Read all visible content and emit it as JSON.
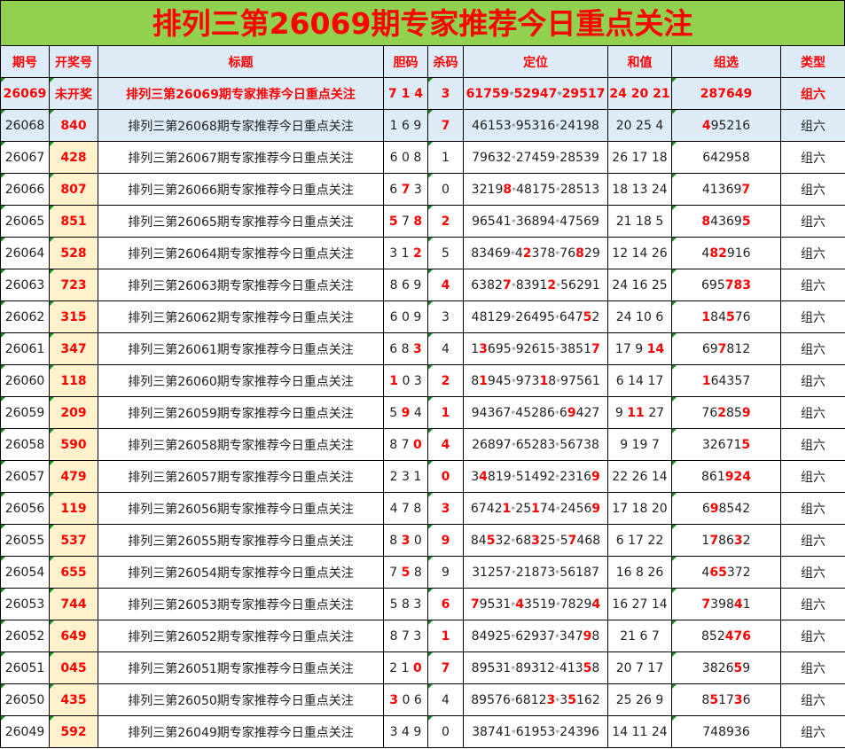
{
  "title": "排列三第26069期专家推荐今日重点关注",
  "headers": [
    "期号",
    "开奖号",
    "标题",
    "胆码",
    "杀码",
    "定位",
    "和值",
    "组选",
    "类型"
  ],
  "colors": {
    "title_bg": "#92d050",
    "accent": "#ff0000",
    "header_bg": "#ddebf7",
    "draw_bg": "#fff2cc"
  },
  "rows": [
    {
      "issue": "26069",
      "draw": "未开奖",
      "title": "排列三第26069期专家推荐今日重点关注",
      "dan": "7 1 4",
      "dan_hl": [
        0,
        2,
        4
      ],
      "sha": "3",
      "sha_red": true,
      "pos": "61759*52947*29517",
      "pos_hl": "all",
      "sum": "24 20 21",
      "sum_hl": "all",
      "group": "287649",
      "group_hl": "all",
      "type": "组六"
    },
    {
      "issue": "26068",
      "draw": "840",
      "title": "排列三第26068期专家推荐今日重点关注",
      "dan": "1 6 9",
      "dan_hl": [],
      "sha": "7",
      "sha_red": true,
      "pos": "46153*95316*24198",
      "pos_hl": [],
      "sum": "20 25 4",
      "sum_hl": [],
      "group": "495216",
      "group_hl": [
        0
      ],
      "type": "组六"
    },
    {
      "issue": "26067",
      "draw": "428",
      "title": "排列三第26067期专家推荐今日重点关注",
      "dan": "6 0 8",
      "dan_hl": [],
      "sha": "1",
      "sha_red": false,
      "pos": "79632*27459*28539",
      "pos_hl": [],
      "sum": "26 17 18",
      "sum_hl": [],
      "group": "642958",
      "group_hl": [],
      "type": "组六"
    },
    {
      "issue": "26066",
      "draw": "807",
      "title": "排列三第26066期专家推荐今日重点关注",
      "dan": "6 7 3",
      "dan_hl": [
        2
      ],
      "sha": "0",
      "sha_red": false,
      "pos": "32198*48175*28513",
      "pos_hl": [
        4
      ],
      "sum": "18 13 24",
      "sum_hl": [],
      "group": "413697",
      "group_hl": [
        5
      ],
      "type": "组六"
    },
    {
      "issue": "26065",
      "draw": "851",
      "title": "排列三第26065期专家推荐今日重点关注",
      "dan": "5 7 8",
      "dan_hl": [
        0,
        4
      ],
      "sha": "2",
      "sha_red": true,
      "pos": "96541*36894*47569",
      "pos_hl": [],
      "sum": "21 18 5",
      "sum_hl": [],
      "group": "843695",
      "group_hl": [
        0,
        5
      ],
      "type": "组六"
    },
    {
      "issue": "26064",
      "draw": "528",
      "title": "排列三第26064期专家推荐今日重点关注",
      "dan": "3 1 2",
      "dan_hl": [
        4
      ],
      "sha": "5",
      "sha_red": false,
      "pos": "83469*42378*76829",
      "pos_hl": [
        7,
        14
      ],
      "sum": "12 14 26",
      "sum_hl": [],
      "group": "482916",
      "group_hl": [
        1,
        2
      ],
      "type": "组六"
    },
    {
      "issue": "26063",
      "draw": "723",
      "title": "排列三第26063期专家推荐今日重点关注",
      "dan": "8 6 9",
      "dan_hl": [],
      "sha": "4",
      "sha_red": true,
      "pos": "63827*83912*56291",
      "pos_hl": [
        4,
        10
      ],
      "sum": "24 16 25",
      "sum_hl": [],
      "group": "695783",
      "group_hl": [
        3,
        4,
        5
      ],
      "type": "组六"
    },
    {
      "issue": "26062",
      "draw": "315",
      "title": "排列三第26062期专家推荐今日重点关注",
      "dan": "6 0 9",
      "dan_hl": [],
      "sha": "3",
      "sha_red": false,
      "pos": "48129*26495*64752",
      "pos_hl": [
        15
      ],
      "sum": "24 10 6",
      "sum_hl": [],
      "group": "184576",
      "group_hl": [
        0,
        3
      ],
      "type": "组六"
    },
    {
      "issue": "26061",
      "draw": "347",
      "title": "排列三第26061期专家推荐今日重点关注",
      "dan": "6 8 3",
      "dan_hl": [
        4
      ],
      "sha": "4",
      "sha_red": false,
      "pos": "13695*92615*38517",
      "pos_hl": [
        1,
        16
      ],
      "sum": "17 9 14",
      "sum_hl": [
        5,
        6
      ],
      "group": "697812",
      "group_hl": [
        2
      ],
      "type": "组六"
    },
    {
      "issue": "26060",
      "draw": "118",
      "title": "排列三第26060期专家推荐今日重点关注",
      "dan": "1 0 3",
      "dan_hl": [
        0
      ],
      "sha": "2",
      "sha_red": true,
      "pos": "81945*97318*97561",
      "pos_hl": [
        1,
        9
      ],
      "sum": "6 14 17",
      "sum_hl": [],
      "group": "164357",
      "group_hl": [
        0
      ],
      "type": "组六"
    },
    {
      "issue": "26059",
      "draw": "209",
      "title": "排列三第26059期专家推荐今日重点关注",
      "dan": "5 9 4",
      "dan_hl": [
        2
      ],
      "sha": "1",
      "sha_red": true,
      "pos": "94367*45286*69427",
      "pos_hl": [
        13
      ],
      "sum": "9 11 27",
      "sum_hl": [
        2,
        3
      ],
      "group": "762859",
      "group_hl": [
        2,
        5
      ],
      "type": "组六"
    },
    {
      "issue": "26058",
      "draw": "590",
      "title": "排列三第26058期专家推荐今日重点关注",
      "dan": "8 7 0",
      "dan_hl": [
        4
      ],
      "sha": "4",
      "sha_red": true,
      "pos": "26897*65283*56738",
      "pos_hl": [],
      "sum": "9 19 7",
      "sum_hl": [],
      "group": "326715",
      "group_hl": [
        5
      ],
      "type": "组六"
    },
    {
      "issue": "26057",
      "draw": "479",
      "title": "排列三第26057期专家推荐今日重点关注",
      "dan": "2 3 1",
      "dan_hl": [],
      "sha": "0",
      "sha_red": true,
      "pos": "34819*51492*23169",
      "pos_hl": [
        1,
        16
      ],
      "sum": "22 26 14",
      "sum_hl": [],
      "group": "861924",
      "group_hl": [
        3,
        4,
        5
      ],
      "type": "组六"
    },
    {
      "issue": "26056",
      "draw": "119",
      "title": "排列三第26056期专家推荐今日重点关注",
      "dan": "4 7 8",
      "dan_hl": [],
      "sha": "3",
      "sha_red": true,
      "pos": "67421*25174*24569",
      "pos_hl": [
        4,
        8,
        16
      ],
      "sum": "17 18 20",
      "sum_hl": [],
      "group": "698542",
      "group_hl": [
        1
      ],
      "type": "组六"
    },
    {
      "issue": "26055",
      "draw": "537",
      "title": "排列三第26055期专家推荐今日重点关注",
      "dan": "8 3 0",
      "dan_hl": [
        2
      ],
      "sha": "9",
      "sha_red": true,
      "pos": "84532*68325*57468",
      "pos_hl": [
        2,
        8,
        13
      ],
      "sum": "6 17 22",
      "sum_hl": [],
      "group": "178632",
      "group_hl": [
        1,
        4
      ],
      "type": "组六"
    },
    {
      "issue": "26054",
      "draw": "655",
      "title": "排列三第26054期专家推荐今日重点关注",
      "dan": "7 5 8",
      "dan_hl": [
        2
      ],
      "sha": "9",
      "sha_red": false,
      "pos": "31257*21873*56187",
      "pos_hl": [],
      "sum": "16 8 26",
      "sum_hl": [],
      "group": "465372",
      "group_hl": [
        1,
        2
      ],
      "type": "组六"
    },
    {
      "issue": "26053",
      "draw": "744",
      "title": "排列三第26053期专家推荐今日重点关注",
      "dan": "5 8 3",
      "dan_hl": [],
      "sha": "6",
      "sha_red": true,
      "pos": "79531*43519*78294",
      "pos_hl": [
        0,
        6,
        16
      ],
      "sum": "16 27 14",
      "sum_hl": [],
      "group": "739841",
      "group_hl": [
        0,
        4
      ],
      "type": "组六"
    },
    {
      "issue": "26052",
      "draw": "649",
      "title": "排列三第26052期专家推荐今日重点关注",
      "dan": "8 7 3",
      "dan_hl": [],
      "sha": "1",
      "sha_red": true,
      "pos": "84925*62937*34798",
      "pos_hl": [
        15
      ],
      "sum": "21 6 7",
      "sum_hl": [],
      "group": "852476",
      "group_hl": [
        3,
        4,
        5
      ],
      "type": "组六"
    },
    {
      "issue": "26051",
      "draw": "045",
      "title": "排列三第26051期专家推荐今日重点关注",
      "dan": "2 1 0",
      "dan_hl": [
        4
      ],
      "sha": "7",
      "sha_red": true,
      "pos": "89531*89312*41358",
      "pos_hl": [
        15
      ],
      "sum": "20 7 17",
      "sum_hl": [],
      "group": "382659",
      "group_hl": [
        4
      ],
      "type": "组六"
    },
    {
      "issue": "26050",
      "draw": "435",
      "title": "排列三第26050期专家推荐今日重点关注",
      "dan": "3 0 6",
      "dan_hl": [
        0
      ],
      "sha": "4",
      "sha_red": false,
      "pos": "89576*68123*35162",
      "pos_hl": [
        10,
        13
      ],
      "sum": "25 26 9",
      "sum_hl": [],
      "group": "851736",
      "group_hl": [
        1,
        4
      ],
      "type": "组六"
    },
    {
      "issue": "26049",
      "draw": "592",
      "title": "排列三第26049期专家推荐今日重点关注",
      "dan": "3 4 9",
      "dan_hl": [],
      "sha": "0",
      "sha_red": false,
      "pos": "38741*61953*24396",
      "pos_hl": [],
      "sum": "14 11 24",
      "sum_hl": [],
      "group": "748936",
      "group_hl": [],
      "type": "组六"
    }
  ]
}
